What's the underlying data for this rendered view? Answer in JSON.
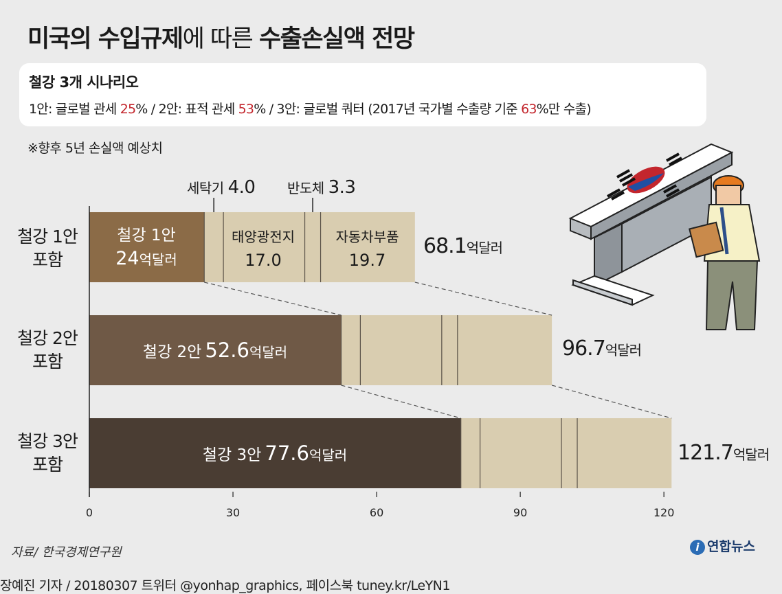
{
  "header": {
    "title_part1": "미국의 수입규제",
    "title_part2": "에 따른 ",
    "title_part3": "수출손실액 전망"
  },
  "scenario_box": {
    "title": "철강 3개 시나리오",
    "line_pre1": "1안: 글로벌 관세 ",
    "pct1": "25",
    "line_pre2": "% / 2안: 표적 관세 ",
    "pct2": "53",
    "line_pre3": "% / 3안: 글로벌 쿼터 (2017년 국가별 수출량 기준 ",
    "pct3": "63",
    "line_post": "%만 수출)"
  },
  "note": "※향후 5년 손실액 예상치",
  "callouts": {
    "washer_label": "세탁기",
    "washer_value": "4.0",
    "semi_label": "반도체",
    "semi_value": "3.3"
  },
  "rows": [
    {
      "label_l1": "철강 1안",
      "label_l2": "포함",
      "steel_l1": "철강 1안",
      "steel_value": "24",
      "unit": "억달러",
      "total": "68.1"
    },
    {
      "label_l1": "철강 2안",
      "label_l2": "포함",
      "steel_l1": "철강 2안",
      "steel_value": "52.6",
      "unit": "억달러",
      "total": "96.7"
    },
    {
      "label_l1": "철강 3안",
      "label_l2": "포함",
      "steel_l1": "철강 3안",
      "steel_value": "77.6",
      "unit": "억달러",
      "total": "121.7"
    }
  ],
  "segment_labels": {
    "solar": "태양광전지",
    "solar_value": "17.0",
    "auto": "자동차부품",
    "auto_value": "19.7"
  },
  "source": "자료/ 한국경제연구원",
  "logo": "연합뉴스",
  "footer": "장예진 기자 / 20180307 트위터 @yonhap_graphics, 페이스북 tuney.kr/LeYN1",
  "colors": {
    "steel1": "#8b6b47",
    "steel2": "#6f5946",
    "steel3": "#4a3d33",
    "others": "#d9cdb0",
    "divider": "#5a5248",
    "highlight": "#c3262d",
    "background": "#ebebeb"
  },
  "chart_data": {
    "type": "bar",
    "orientation": "horizontal",
    "stacked": true,
    "categories": [
      "철강 1안 포함",
      "철강 2안 포함",
      "철강 3안 포함"
    ],
    "series": [
      {
        "name": "철강",
        "values": [
          24,
          52.6,
          77.6
        ]
      },
      {
        "name": "세탁기",
        "values": [
          4.0,
          4.0,
          4.0
        ]
      },
      {
        "name": "태양광전지",
        "values": [
          17.0,
          17.0,
          17.0
        ]
      },
      {
        "name": "반도체",
        "values": [
          3.3,
          3.3,
          3.3
        ]
      },
      {
        "name": "자동차부품",
        "values": [
          19.7,
          19.7,
          19.7
        ]
      }
    ],
    "totals": [
      68.1,
      96.7,
      121.7
    ],
    "unit": "억달러",
    "xlim": [
      0,
      121.7
    ],
    "xticks": [
      0,
      30,
      60,
      90,
      120
    ],
    "grid": false
  }
}
